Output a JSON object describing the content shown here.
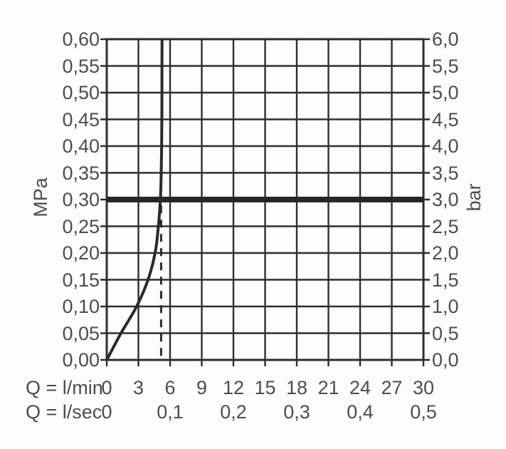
{
  "chart_data": {
    "type": "line",
    "title": "",
    "description": "Flow rate vs. pressure performance curve with flow limiter; reference line at 0.3 MPa (3 bar)",
    "x_axis": {
      "unit_primary_label": "Q = l/min",
      "unit_secondary_label": "Q = l/sec",
      "range_lmin": [
        0,
        30
      ],
      "ticks_lmin": {
        "values": [
          0,
          3,
          6,
          9,
          12,
          15,
          18,
          21,
          24,
          27,
          30
        ],
        "labels": [
          "0",
          "3",
          "6",
          "9",
          "12",
          "15",
          "18",
          "21",
          "24",
          "27",
          "30"
        ]
      },
      "ticks_lsec": {
        "values_lmin": [
          0,
          6,
          12,
          18,
          24,
          30
        ],
        "labels": [
          "0",
          "0,1",
          "0,2",
          "0,3",
          "0,4",
          "0,5"
        ]
      }
    },
    "y_axis_left": {
      "unit_label": "MPa",
      "range": [
        0,
        0.6
      ],
      "tick_values": [
        0.6,
        0.55,
        0.5,
        0.45,
        0.4,
        0.35,
        0.3,
        0.25,
        0.2,
        0.15,
        0.1,
        0.05,
        0.0
      ],
      "tick_labels": [
        "0,60",
        "0,55",
        "0,50",
        "0,45",
        "0,40",
        "0,35",
        "0,30",
        "0,25",
        "0,20",
        "0,15",
        "0,10",
        "0,05",
        "0,00"
      ]
    },
    "y_axis_right": {
      "unit_label": "bar",
      "range": [
        0,
        6
      ],
      "tick_values": [
        6.0,
        5.5,
        5.0,
        4.5,
        4.0,
        3.5,
        3.0,
        2.5,
        2.0,
        1.5,
        1.0,
        0.5,
        0.0
      ],
      "tick_labels": [
        "6,0",
        "5,5",
        "5,0",
        "4,5",
        "4,0",
        "3,5",
        "3,0",
        "2,5",
        "2,0",
        "1,5",
        "1,0",
        "0,5",
        "0,0"
      ]
    },
    "series": [
      {
        "name": "flow-curve",
        "points_lmin_mpa": [
          [
            0,
            0.0
          ],
          [
            1.35,
            0.05
          ],
          [
            2.83,
            0.1
          ],
          [
            3.91,
            0.15
          ],
          [
            4.58,
            0.2
          ],
          [
            4.89,
            0.25
          ],
          [
            5.08,
            0.3
          ],
          [
            5.16,
            0.35
          ],
          [
            5.2,
            0.4
          ],
          [
            5.22,
            0.45
          ],
          [
            5.23,
            0.5
          ],
          [
            5.23,
            0.55
          ],
          [
            5.24,
            0.6
          ]
        ]
      }
    ],
    "reference_line_mpa": 0.3,
    "dashed_marker": {
      "x_lmin": 5.15,
      "from_mpa": 0.0,
      "to_mpa": 0.289
    },
    "grid": true,
    "legend": "none",
    "colors": {
      "grid_line": "#2e2e2e",
      "curve_line": "#2a2a2a",
      "reference_line": "#262626",
      "text": "#4d4d4d",
      "background": "#fdfdfd"
    }
  }
}
